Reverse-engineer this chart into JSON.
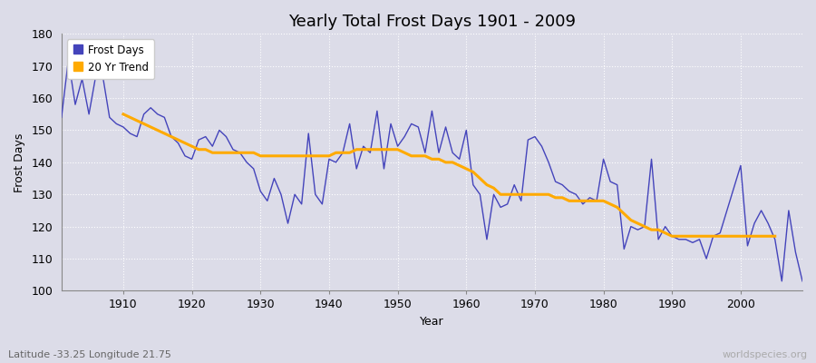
{
  "title": "Yearly Total Frost Days 1901 - 2009",
  "xlabel": "Year",
  "ylabel": "Frost Days",
  "subtitle": "Latitude -33.25 Longitude 21.75",
  "watermark": "worldspecies.org",
  "ylim": [
    100,
    180
  ],
  "xlim": [
    1901,
    2009
  ],
  "yticks": [
    100,
    110,
    120,
    130,
    140,
    150,
    160,
    170,
    180
  ],
  "xticks": [
    1910,
    1920,
    1930,
    1940,
    1950,
    1960,
    1970,
    1980,
    1990,
    2000
  ],
  "bg_color": "#dcdce8",
  "plot_bg_color": "#dcdce8",
  "frost_color": "#4444bb",
  "trend_color": "#ffaa00",
  "legend_frost": "Frost Days",
  "legend_trend": "20 Yr Trend",
  "years": [
    1901,
    1902,
    1903,
    1904,
    1905,
    1906,
    1907,
    1908,
    1909,
    1910,
    1911,
    1912,
    1913,
    1914,
    1915,
    1916,
    1917,
    1918,
    1919,
    1920,
    1921,
    1922,
    1923,
    1924,
    1925,
    1926,
    1927,
    1928,
    1929,
    1930,
    1931,
    1932,
    1933,
    1934,
    1935,
    1936,
    1937,
    1938,
    1939,
    1940,
    1941,
    1942,
    1943,
    1944,
    1945,
    1946,
    1947,
    1948,
    1949,
    1950,
    1951,
    1952,
    1953,
    1954,
    1955,
    1956,
    1957,
    1958,
    1959,
    1960,
    1961,
    1962,
    1963,
    1964,
    1965,
    1966,
    1967,
    1968,
    1969,
    1970,
    1971,
    1972,
    1973,
    1974,
    1975,
    1976,
    1977,
    1978,
    1979,
    1980,
    1981,
    1982,
    1983,
    1984,
    1985,
    1986,
    1987,
    1988,
    1989,
    1990,
    1991,
    1992,
    1993,
    1994,
    1995,
    1996,
    1997,
    1998,
    1999,
    2000,
    2001,
    2002,
    2003,
    2004,
    2005,
    2006,
    2007,
    2008,
    2009
  ],
  "frost_days": [
    154,
    172,
    158,
    166,
    155,
    167,
    167,
    154,
    152,
    151,
    149,
    148,
    155,
    157,
    155,
    154,
    148,
    146,
    142,
    141,
    147,
    148,
    145,
    150,
    148,
    144,
    143,
    140,
    138,
    131,
    128,
    135,
    130,
    121,
    130,
    127,
    149,
    130,
    127,
    141,
    140,
    143,
    152,
    138,
    145,
    143,
    156,
    138,
    152,
    145,
    148,
    152,
    151,
    143,
    156,
    143,
    151,
    143,
    141,
    150,
    133,
    130,
    116,
    130,
    126,
    127,
    133,
    128,
    147,
    148,
    145,
    140,
    134,
    133,
    131,
    130,
    127,
    129,
    128,
    141,
    134,
    133,
    113,
    120,
    119,
    120,
    141,
    116,
    120,
    117,
    116,
    116,
    115,
    116,
    110,
    117,
    118,
    125,
    132,
    139,
    114,
    121,
    125,
    121,
    116,
    103,
    125,
    112,
    103
  ],
  "trend_days": [
    null,
    null,
    null,
    null,
    null,
    null,
    null,
    null,
    null,
    155,
    154,
    153,
    152,
    151,
    150,
    149,
    148,
    147,
    146,
    145,
    144,
    144,
    143,
    143,
    143,
    143,
    143,
    143,
    143,
    142,
    142,
    142,
    142,
    142,
    142,
    142,
    142,
    142,
    142,
    142,
    143,
    143,
    143,
    144,
    144,
    144,
    144,
    144,
    144,
    144,
    143,
    142,
    142,
    142,
    141,
    141,
    140,
    140,
    139,
    138,
    137,
    135,
    133,
    132,
    130,
    130,
    130,
    130,
    130,
    130,
    130,
    130,
    129,
    129,
    128,
    128,
    128,
    128,
    128,
    128,
    127,
    126,
    124,
    122,
    121,
    120,
    119,
    119,
    118,
    117,
    117,
    117,
    117,
    117,
    117,
    117,
    117,
    117,
    117,
    117,
    117,
    117,
    117,
    117,
    117,
    null,
    null,
    null,
    null
  ]
}
